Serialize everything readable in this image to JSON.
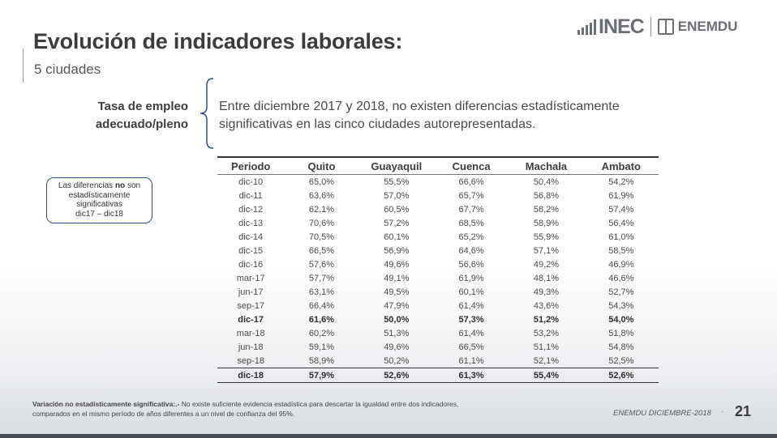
{
  "header": {
    "title": "Evolución de indicadores laborales:",
    "subtitle": "5 ciudades",
    "logo_main": "INEC",
    "logo_secondary": "ENEMDU"
  },
  "indicator": {
    "label_line1": "Tasa de empleo",
    "label_line2": "adecuado/pleno",
    "text_line1": "Entre diciembre 2017 y 2018, no existen diferencias estadísticamente",
    "text_line2": "significativas en las cinco ciudades autorepresentadas."
  },
  "note": {
    "part1": "Las diferencias ",
    "bold": "no",
    "part2": " son",
    "line2": "estadísticamente",
    "line3": "significativas",
    "line4": "dic17 – dic18",
    "border_color": "#2d4f8c"
  },
  "table": {
    "headers": [
      "Periodo",
      "Quito",
      "Guayaquil",
      "Cuenca",
      "Machala",
      "Ambato"
    ],
    "rows": [
      {
        "cells": [
          "dic-10",
          "65,0%",
          "55,5%",
          "66,6%",
          "50,4%",
          "54,2%"
        ],
        "highlight": false
      },
      {
        "cells": [
          "dic-11",
          "63,6%",
          "57,0%",
          "65,7%",
          "56,8%",
          "61,9%"
        ],
        "highlight": false
      },
      {
        "cells": [
          "dic-12",
          "62,1%",
          "60,5%",
          "67,7%",
          "58,2%",
          "57,4%"
        ],
        "highlight": false
      },
      {
        "cells": [
          "dic-13",
          "70,6%",
          "57,2%",
          "68,5%",
          "58,9%",
          "56,4%"
        ],
        "highlight": false
      },
      {
        "cells": [
          "dic-14",
          "70,5%",
          "60,1%",
          "65,2%",
          "55,9%",
          "61,0%"
        ],
        "highlight": false
      },
      {
        "cells": [
          "dic-15",
          "66,5%",
          "56,9%",
          "64,6%",
          "57,1%",
          "58,5%"
        ],
        "highlight": false
      },
      {
        "cells": [
          "dic-16",
          "57,6%",
          "49,6%",
          "56,6%",
          "49,2%",
          "46,9%"
        ],
        "highlight": false
      },
      {
        "cells": [
          "mar-17",
          "57,7%",
          "49,1%",
          "61,9%",
          "48,1%",
          "46,6%"
        ],
        "highlight": false
      },
      {
        "cells": [
          "jun-17",
          "63,1%",
          "49,5%",
          "60,1%",
          "49,3%",
          "52,7%"
        ],
        "highlight": false
      },
      {
        "cells": [
          "sep-17",
          "66,4%",
          "47,9%",
          "61,4%",
          "43,6%",
          "54,3%"
        ],
        "highlight": false
      },
      {
        "cells": [
          "dic-17",
          "61,6%",
          "50,0%",
          "57,3%",
          "51,2%",
          "54,0%"
        ],
        "highlight": true
      },
      {
        "cells": [
          "mar-18",
          "60,2%",
          "51,3%",
          "61,4%",
          "53,2%",
          "51,8%"
        ],
        "highlight": false
      },
      {
        "cells": [
          "jun-18",
          "59,1%",
          "49,6%",
          "66,5%",
          "51,1%",
          "54,8%"
        ],
        "highlight": false
      },
      {
        "cells": [
          "sep-18",
          "58,9%",
          "50,2%",
          "61,1%",
          "52,1%",
          "52,5%"
        ],
        "highlight": false
      },
      {
        "cells": [
          "dic-18",
          "57,9%",
          "52,6%",
          "61,3%",
          "55,4%",
          "52,6%"
        ],
        "highlight": true
      }
    ]
  },
  "footer": {
    "note_bold": "Variación no estadísticamente significativa:.-",
    "note_text1": " No existe suficiente evidencia estadística para descartar la igualdad entre dos indicadores,",
    "note_text2": "comparados en el mismo período de años diferentes a un nivel de confianza del 95%.",
    "reference": "ENEMDU DICIEMBRE-2018",
    "separator": "·",
    "page_number": "21"
  }
}
